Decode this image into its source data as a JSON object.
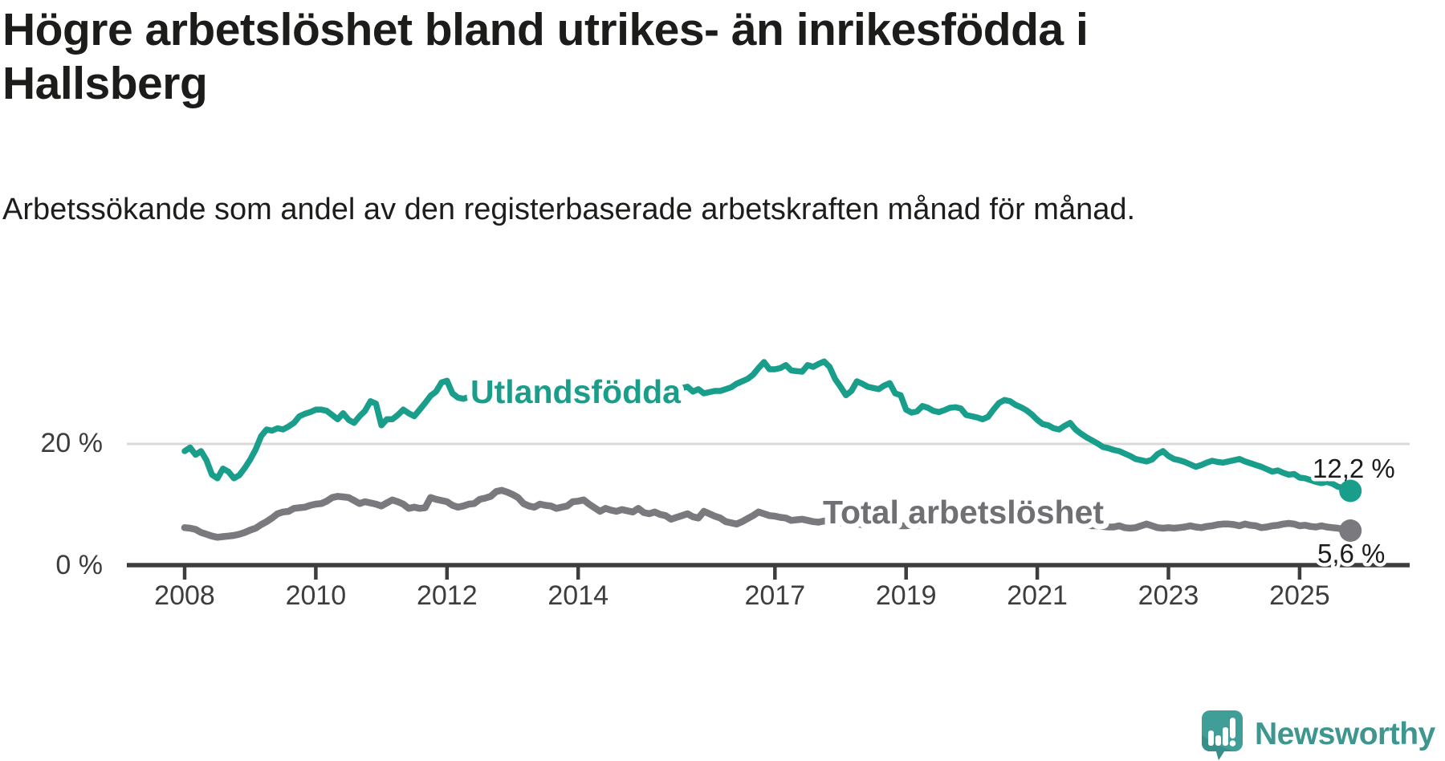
{
  "title": "Högre arbetslöshet bland utrikes- än inrikesfödda i Hallsberg",
  "subtitle": "Arbetssökande som andel av den registerbaserade arbetskraften månad för månad.",
  "branding": {
    "logo_text": "Newsworthy",
    "logo_icon": "speech-bubble-bar-chart",
    "color": "#3e968f"
  },
  "chart_data": {
    "type": "line",
    "x_start": "2008-01",
    "x_end": "2025-10",
    "x_tick_years": [
      2008,
      2010,
      2012,
      2014,
      2017,
      2019,
      2021,
      2023,
      2025
    ],
    "x_tick_labels": [
      "2008",
      "2010",
      "2012",
      "2014",
      "2017",
      "2019",
      "2021",
      "2023",
      "2025"
    ],
    "y_tick_labels": [
      "0 %",
      "20 %"
    ],
    "y_gridline_value": 20,
    "ylim": [
      0,
      36
    ],
    "grid": "single horizontal gridline at 20 %, x axis at 0 %",
    "legend_position": "inline labels on lines",
    "colors": {
      "utlandsfodda": "#1a9e8c",
      "total": "#7a7a7e",
      "axis": "#3d3d3d",
      "gridline": "#d9d9d9",
      "value_label": "#1c1c1a"
    },
    "series": [
      {
        "name": "Utlandsfödda",
        "color": "#1a9e8c",
        "end_label": "12,2 %",
        "end_value": 12.2,
        "values": [
          18.8,
          19.4,
          18.2,
          18.8,
          17.3,
          14.9,
          14.3,
          15.9,
          15.4,
          14.3,
          14.8,
          16.0,
          17.4,
          19.1,
          21.3,
          22.4,
          22.2,
          22.6,
          22.4,
          22.9,
          23.5,
          24.6,
          25.0,
          25.3,
          25.7,
          25.7,
          25.5,
          24.8,
          24.1,
          25.1,
          24.0,
          23.5,
          24.6,
          25.5,
          27.1,
          26.7,
          23.1,
          24.1,
          24.1,
          24.8,
          25.7,
          25.1,
          24.6,
          25.7,
          26.8,
          28.0,
          28.7,
          30.2,
          30.5,
          28.4,
          27.7,
          27.5,
          27.8,
          28.0,
          27.6,
          28.2,
          28.5,
          28.3,
          28.6,
          28.4,
          28.2,
          28.6,
          28.9,
          28.5,
          28.8,
          28.4,
          28.1,
          28.5,
          28.8,
          29.0,
          28.7,
          28.9,
          28.6,
          28.9,
          29.2,
          28.8,
          28.5,
          28.9,
          28.6,
          28.3,
          28.7,
          29.0,
          28.8,
          29.1,
          28.9,
          29.2,
          29.0,
          28.7,
          29.1,
          28.8,
          29.0,
          29.3,
          29.5,
          28.7,
          29.1,
          28.4,
          28.6,
          28.8,
          28.8,
          29.1,
          29.4,
          30.0,
          30.4,
          30.8,
          31.5,
          32.6,
          33.6,
          32.4,
          32.4,
          32.6,
          33.1,
          32.2,
          32.1,
          32.0,
          33.1,
          32.8,
          33.3,
          33.7,
          32.8,
          30.8,
          29.5,
          28.1,
          28.8,
          30.4,
          30.0,
          29.5,
          29.3,
          29.1,
          29.7,
          30.1,
          28.4,
          28.1,
          25.7,
          25.2,
          25.4,
          26.3,
          26.0,
          25.5,
          25.3,
          25.6,
          26.0,
          26.1,
          25.9,
          24.8,
          24.6,
          24.4,
          24.1,
          24.5,
          25.7,
          26.8,
          27.3,
          27.1,
          26.5,
          26.1,
          25.6,
          24.9,
          24.0,
          23.3,
          23.1,
          22.6,
          22.4,
          23.0,
          23.5,
          22.4,
          21.7,
          21.1,
          20.6,
          20.1,
          19.5,
          19.3,
          19.0,
          18.8,
          18.4,
          18.0,
          17.5,
          17.3,
          17.1,
          17.4,
          18.3,
          18.8,
          18.0,
          17.5,
          17.3,
          17.0,
          16.6,
          16.2,
          16.5,
          16.9,
          17.2,
          17.0,
          16.9,
          17.1,
          17.3,
          17.5,
          17.1,
          16.8,
          16.5,
          16.2,
          15.8,
          15.4,
          15.6,
          15.2,
          14.9,
          15.0,
          14.4,
          14.3,
          14.0,
          13.7,
          13.5,
          13.7,
          13.4,
          12.9,
          12.7,
          12.2
        ]
      },
      {
        "name": "Total arbetslöshet",
        "color": "#7a7a7e",
        "end_label": "5,6 %",
        "end_value": 5.6,
        "values": [
          6.1,
          6.0,
          5.8,
          5.3,
          5.0,
          4.7,
          4.5,
          4.6,
          4.7,
          4.8,
          5.0,
          5.3,
          5.7,
          6.0,
          6.6,
          7.1,
          7.7,
          8.4,
          8.7,
          8.8,
          9.3,
          9.4,
          9.5,
          9.8,
          10.0,
          10.1,
          10.5,
          11.1,
          11.3,
          11.2,
          11.1,
          10.6,
          10.1,
          10.4,
          10.2,
          10.0,
          9.7,
          10.2,
          10.7,
          10.4,
          10.0,
          9.3,
          9.5,
          9.3,
          9.4,
          11.1,
          10.8,
          10.6,
          10.4,
          9.8,
          9.5,
          9.7,
          10.0,
          10.1,
          10.8,
          11.0,
          11.3,
          12.1,
          12.3,
          12.0,
          11.6,
          11.1,
          10.1,
          9.7,
          9.5,
          10.0,
          9.8,
          9.7,
          9.3,
          9.5,
          9.7,
          10.4,
          10.5,
          10.7,
          10.0,
          9.4,
          8.8,
          9.3,
          9.0,
          8.8,
          9.1,
          8.9,
          8.7,
          9.3,
          8.6,
          8.4,
          8.7,
          8.3,
          8.1,
          7.5,
          7.8,
          8.1,
          8.4,
          7.9,
          7.7,
          8.8,
          8.4,
          8.0,
          7.7,
          7.1,
          6.9,
          6.7,
          7.1,
          7.6,
          8.1,
          8.7,
          8.4,
          8.1,
          8.0,
          7.8,
          7.7,
          7.3,
          7.4,
          7.5,
          7.3,
          7.1,
          7.0,
          7.2,
          7.1,
          7.0,
          6.9,
          6.8,
          6.9,
          6.7,
          6.6,
          6.7,
          6.5,
          6.6,
          6.7,
          6.6,
          6.5,
          6.4,
          6.4,
          6.5,
          6.4,
          6.6,
          6.7,
          6.6,
          6.7,
          6.8,
          6.9,
          7.0,
          6.9,
          7.0,
          7.2,
          7.3,
          7.6,
          8.4,
          8.9,
          9.2,
          9.3,
          9.1,
          8.9,
          8.7,
          8.5,
          8.4,
          8.2,
          8.0,
          7.8,
          7.5,
          7.3,
          7.1,
          6.9,
          6.8,
          6.6,
          6.5,
          6.4,
          6.4,
          6.3,
          6.2,
          6.2,
          6.4,
          6.1,
          6.0,
          6.1,
          6.4,
          6.7,
          6.4,
          6.1,
          6.0,
          6.1,
          6.0,
          6.1,
          6.2,
          6.4,
          6.2,
          6.1,
          6.3,
          6.4,
          6.6,
          6.7,
          6.7,
          6.6,
          6.4,
          6.7,
          6.5,
          6.4,
          6.1,
          6.2,
          6.4,
          6.5,
          6.7,
          6.8,
          6.7,
          6.4,
          6.5,
          6.3,
          6.2,
          6.4,
          6.2,
          6.1,
          6.0,
          5.8,
          5.6
        ]
      }
    ]
  }
}
